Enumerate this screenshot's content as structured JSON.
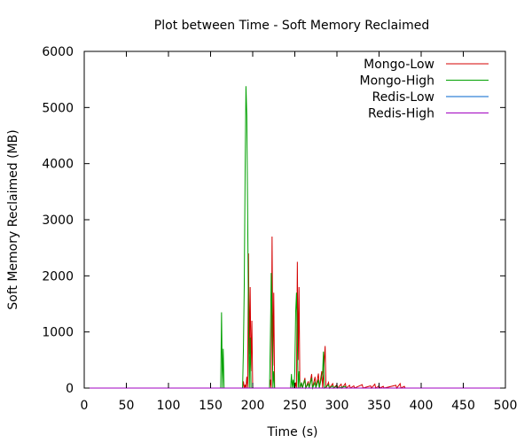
{
  "chart_data": {
    "type": "line",
    "title": "Plot between Time - Soft Memory Reclaimed",
    "xlabel": "Time (s)",
    "ylabel": "Soft Memory Reclaimed (MB)",
    "xlim": [
      0,
      500
    ],
    "ylim": [
      0,
      6000
    ],
    "xticks": [
      0,
      50,
      100,
      150,
      200,
      250,
      300,
      350,
      400,
      450,
      500
    ],
    "yticks": [
      0,
      1000,
      2000,
      3000,
      4000,
      5000,
      6000
    ],
    "grid": false,
    "legend_position": "top-right",
    "series": [
      {
        "name": "Mongo-Low",
        "color": "#d40000",
        "points": [
          [
            160,
            0
          ],
          [
            188,
            0
          ],
          [
            189,
            120
          ],
          [
            190,
            0
          ],
          [
            191,
            60
          ],
          [
            192,
            0
          ],
          [
            193,
            200
          ],
          [
            194,
            0
          ],
          [
            195,
            2400
          ],
          [
            196,
            600
          ],
          [
            197,
            1800
          ],
          [
            198,
            300
          ],
          [
            199,
            1200
          ],
          [
            200,
            0
          ],
          [
            220,
            0
          ],
          [
            221,
            150
          ],
          [
            222,
            0
          ],
          [
            223,
            2700
          ],
          [
            224,
            400
          ],
          [
            225,
            1700
          ],
          [
            226,
            0
          ],
          [
            250,
            0
          ],
          [
            251,
            100
          ],
          [
            252,
            0
          ],
          [
            253,
            2250
          ],
          [
            254,
            500
          ],
          [
            255,
            1800
          ],
          [
            256,
            0
          ],
          [
            258,
            80
          ],
          [
            259,
            0
          ],
          [
            262,
            180
          ],
          [
            263,
            0
          ],
          [
            266,
            120
          ],
          [
            267,
            0
          ],
          [
            270,
            250
          ],
          [
            271,
            0
          ],
          [
            274,
            200
          ],
          [
            275,
            0
          ],
          [
            278,
            260
          ],
          [
            279,
            0
          ],
          [
            282,
            300
          ],
          [
            283,
            0
          ],
          [
            286,
            750
          ],
          [
            287,
            0
          ],
          [
            290,
            100
          ],
          [
            291,
            0
          ],
          [
            295,
            80
          ],
          [
            296,
            0
          ],
          [
            300,
            60
          ],
          [
            301,
            0
          ],
          [
            305,
            70
          ],
          [
            306,
            0
          ],
          [
            310,
            80
          ],
          [
            311,
            0
          ],
          [
            315,
            50
          ],
          [
            316,
            0
          ],
          [
            320,
            40
          ],
          [
            321,
            0
          ],
          [
            330,
            60
          ],
          [
            331,
            0
          ],
          [
            340,
            40
          ],
          [
            341,
            0
          ],
          [
            345,
            70
          ],
          [
            346,
            0
          ],
          [
            350,
            40
          ],
          [
            351,
            0
          ],
          [
            355,
            30
          ],
          [
            356,
            0
          ],
          [
            370,
            50
          ],
          [
            371,
            0
          ],
          [
            375,
            80
          ],
          [
            376,
            0
          ],
          [
            380,
            30
          ],
          [
            381,
            0
          ]
        ]
      },
      {
        "name": "Mongo-High",
        "color": "#00a000",
        "points": [
          [
            160,
            0
          ],
          [
            162,
            0
          ],
          [
            163,
            1350
          ],
          [
            164,
            0
          ],
          [
            165,
            700
          ],
          [
            166,
            0
          ],
          [
            188,
            0
          ],
          [
            189,
            700
          ],
          [
            190,
            1850
          ],
          [
            191,
            3850
          ],
          [
            192,
            5380
          ],
          [
            193,
            4850
          ],
          [
            194,
            3150
          ],
          [
            195,
            1200
          ],
          [
            196,
            0
          ],
          [
            197,
            900
          ],
          [
            198,
            0
          ],
          [
            220,
            0
          ],
          [
            221,
            900
          ],
          [
            222,
            2050
          ],
          [
            223,
            1250
          ],
          [
            224,
            0
          ],
          [
            225,
            300
          ],
          [
            226,
            0
          ],
          [
            245,
            0
          ],
          [
            246,
            250
          ],
          [
            247,
            0
          ],
          [
            248,
            150
          ],
          [
            249,
            0
          ],
          [
            250,
            300
          ],
          [
            251,
            1350
          ],
          [
            252,
            1700
          ],
          [
            253,
            800
          ],
          [
            254,
            0
          ],
          [
            255,
            300
          ],
          [
            256,
            0
          ],
          [
            258,
            100
          ],
          [
            259,
            0
          ],
          [
            262,
            150
          ],
          [
            263,
            0
          ],
          [
            266,
            80
          ],
          [
            267,
            0
          ],
          [
            270,
            180
          ],
          [
            271,
            0
          ],
          [
            274,
            100
          ],
          [
            275,
            0
          ],
          [
            278,
            150
          ],
          [
            279,
            0
          ],
          [
            283,
            280
          ],
          [
            284,
            650
          ],
          [
            285,
            0
          ],
          [
            290,
            60
          ],
          [
            291,
            0
          ],
          [
            295,
            40
          ],
          [
            296,
            0
          ],
          [
            300,
            40
          ],
          [
            301,
            0
          ],
          [
            310,
            30
          ],
          [
            311,
            0
          ]
        ]
      },
      {
        "name": "Redis-Low",
        "color": "#0066cc",
        "points": [
          [
            0,
            0
          ],
          [
            500,
            0
          ]
        ]
      },
      {
        "name": "Redis-High",
        "color": "#a000c0",
        "points": [
          [
            0,
            0
          ],
          [
            500,
            0
          ]
        ]
      }
    ]
  }
}
